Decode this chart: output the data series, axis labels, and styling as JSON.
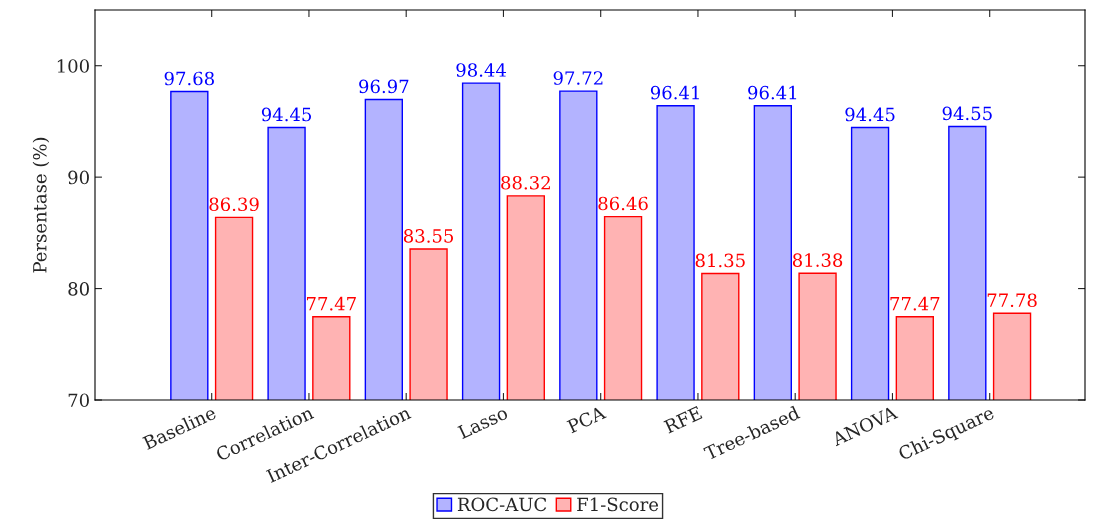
{
  "chart_data": {
    "type": "bar",
    "ylabel": "Persentase (%)",
    "categories": [
      "Baseline",
      "Correlation",
      "Inter-Correlation",
      "Lasso",
      "PCA",
      "RFE",
      "Tree-based",
      "ANOVA",
      "Chi-Square"
    ],
    "series": [
      {
        "name": "ROC-AUC",
        "color": "#b3b3ff",
        "values": [
          97.68,
          94.45,
          96.97,
          98.44,
          97.72,
          96.41,
          96.41,
          94.45,
          94.55
        ]
      },
      {
        "name": "F1-Score",
        "color": "#ffb3b3",
        "values": [
          86.39,
          77.47,
          83.55,
          88.32,
          86.46,
          81.35,
          81.38,
          77.47,
          77.78
        ]
      }
    ],
    "ylim": [
      70,
      105
    ],
    "yticks": [
      70,
      80,
      90,
      100
    ],
    "data_labels": true,
    "grid": false,
    "legend": "bottom"
  }
}
